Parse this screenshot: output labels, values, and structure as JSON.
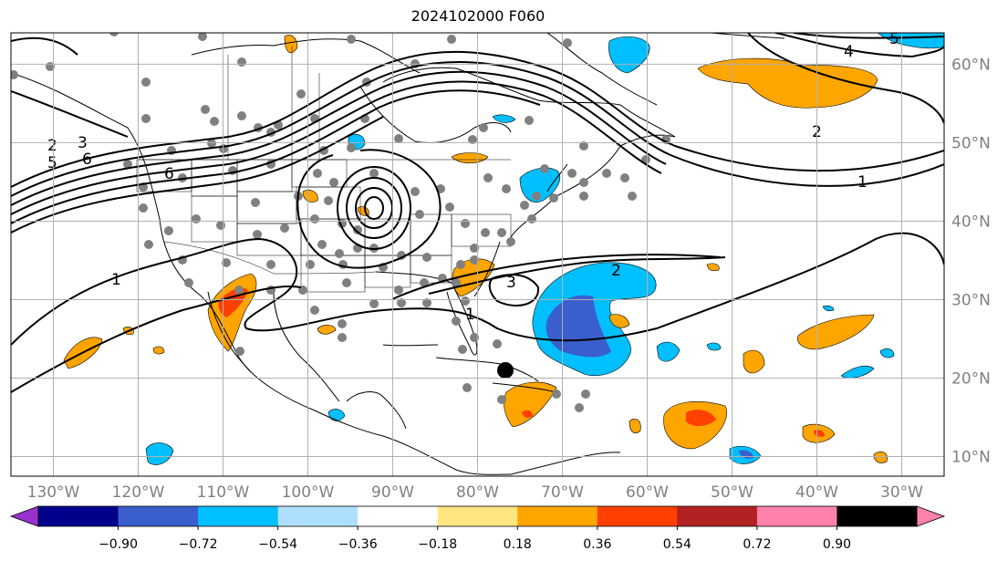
{
  "title": "2024102000 F060",
  "map": {
    "lon_labels": [
      {
        "text": "130°W",
        "lon": -130
      },
      {
        "text": "120°W",
        "lon": -120
      },
      {
        "text": "110°W",
        "lon": -110
      },
      {
        "text": "100°W",
        "lon": -100
      },
      {
        "text": "90°W",
        "lon": -90
      },
      {
        "text": "80°W",
        "lon": -80
      },
      {
        "text": "70°W",
        "lon": -70
      },
      {
        "text": "60°W",
        "lon": -60
      },
      {
        "text": "50°W",
        "lon": -50
      },
      {
        "text": "40°W",
        "lon": -40
      },
      {
        "text": "30°W",
        "lon": -30
      }
    ],
    "lat_labels": [
      {
        "text": "60°N",
        "lat": 60
      },
      {
        "text": "50°N",
        "lat": 50
      },
      {
        "text": "40°N",
        "lat": 40
      },
      {
        "text": "30°N",
        "lat": 30
      },
      {
        "text": "20°N",
        "lat": 20
      },
      {
        "text": "10°N",
        "lat": 10
      }
    ],
    "contour_labels": [
      "1",
      "2",
      "3",
      "4",
      "5",
      "6"
    ],
    "label_color": "#808080",
    "gridline_color": "#b0b0b0"
  },
  "colorbar": {
    "ticks": [
      "−0.90",
      "−0.72",
      "−0.54",
      "−0.36",
      "−0.18",
      "0.18",
      "0.36",
      "0.54",
      "0.72",
      "0.90"
    ],
    "colors": [
      "#9932cc",
      "#00008b",
      "#3a5fcd",
      "#00bfff",
      "#afdfff",
      "#ffffff",
      "#ffe680",
      "#ffa500",
      "#ff4000",
      "#b22222",
      "#ff82ab"
    ]
  }
}
